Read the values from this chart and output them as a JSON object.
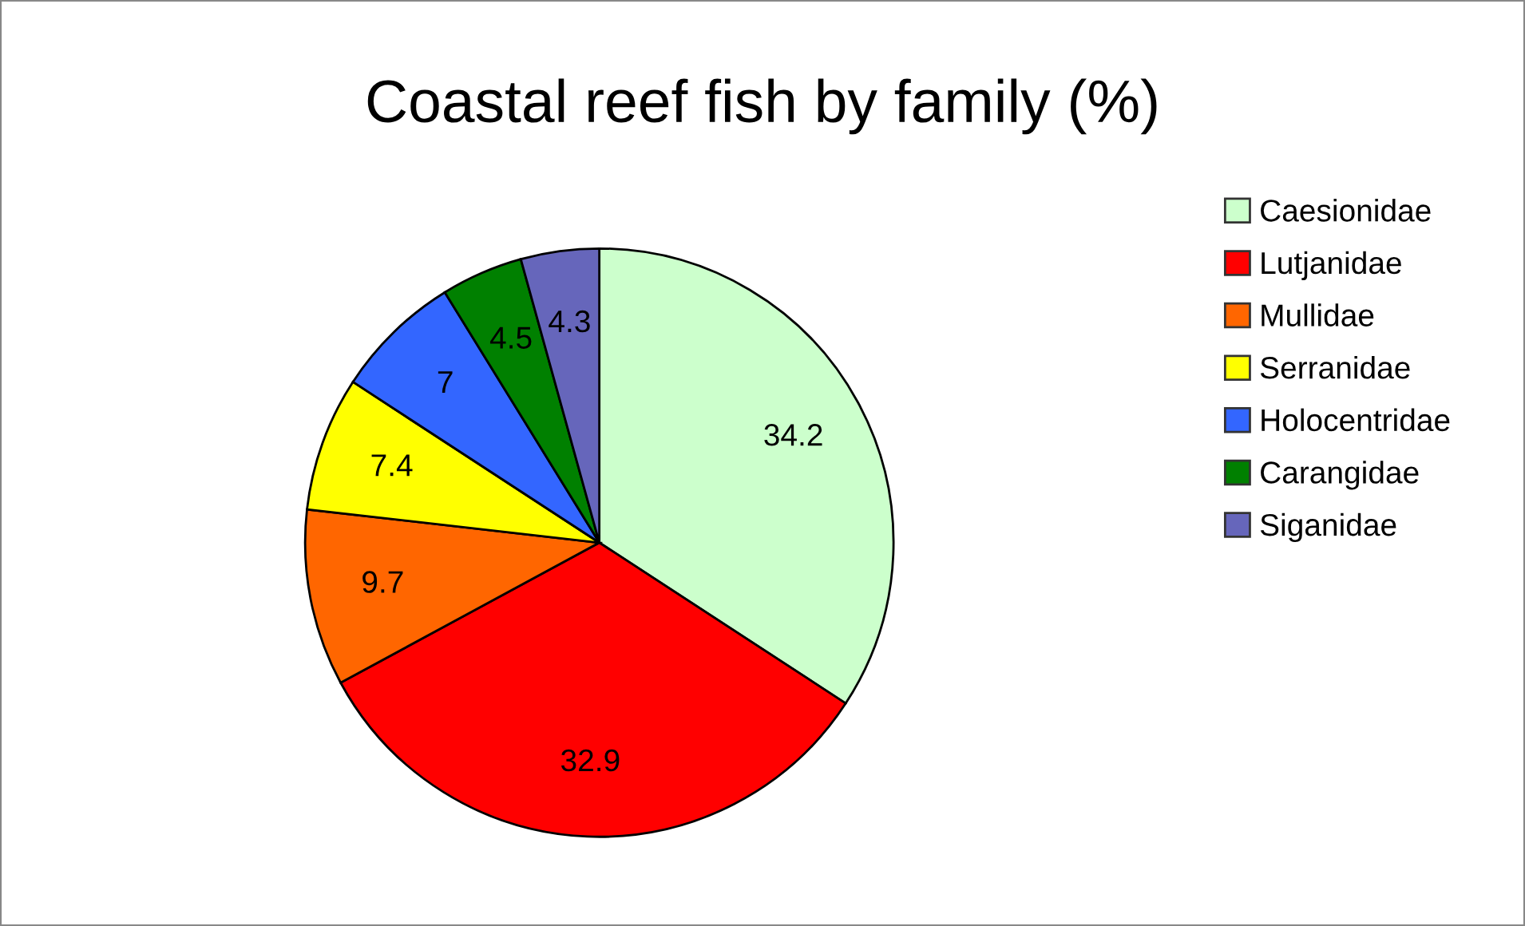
{
  "chart_data": {
    "type": "pie",
    "title": "Coastal reef fish by family (%)",
    "categories": [
      "Caesionidae",
      "Lutjanidae",
      "Mullidae",
      "Serranidae",
      "Holocentridae",
      "Carangidae",
      "Siganidae"
    ],
    "values": [
      34.2,
      32.9,
      9.7,
      7.4,
      7,
      4.5,
      4.3
    ],
    "colors": [
      "#ccffcc",
      "#ff0000",
      "#ff6600",
      "#ffff00",
      "#3366ff",
      "#008000",
      "#6666bb"
    ],
    "data_labels": true,
    "legend": "right"
  }
}
